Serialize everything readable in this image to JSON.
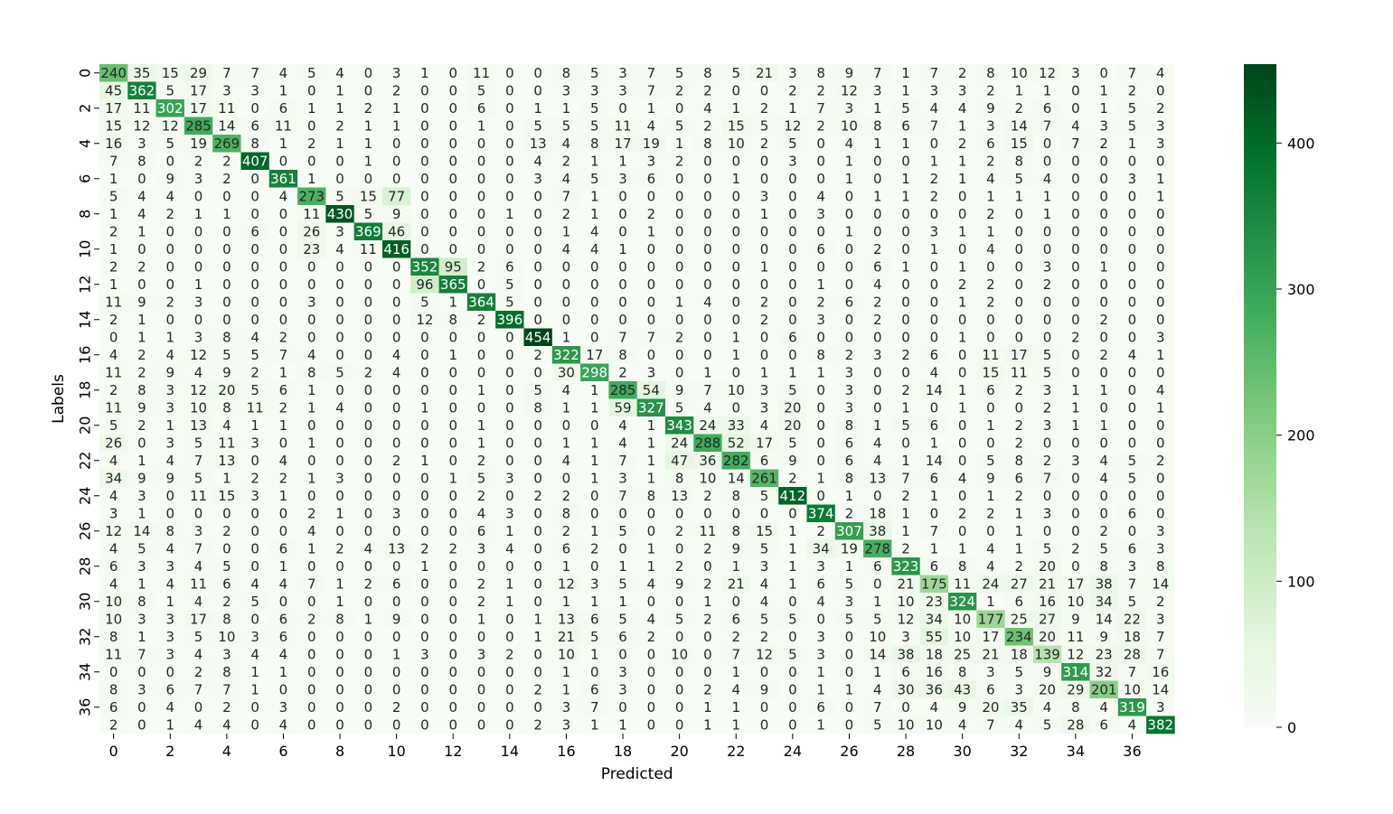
{
  "chart_data": {
    "type": "heatmap",
    "title": "",
    "xlabel": "Predicted",
    "ylabel": "Labels",
    "x_tick_labels": [
      "0",
      "2",
      "4",
      "6",
      "8",
      "10",
      "12",
      "14",
      "16",
      "18",
      "20",
      "22",
      "24",
      "26",
      "28",
      "30",
      "32",
      "34",
      "36"
    ],
    "y_tick_labels": [
      "0",
      "2",
      "4",
      "6",
      "8",
      "10",
      "12",
      "14",
      "16",
      "18",
      "20",
      "22",
      "24",
      "26",
      "28",
      "30",
      "32",
      "34",
      "36"
    ],
    "colorbar_ticks": [
      "0",
      "100",
      "200",
      "300",
      "400"
    ],
    "colorbar_range": [
      0,
      454
    ],
    "colormap": [
      "#f7fcf5",
      "#e5f5e0",
      "#c7e9c0",
      "#a1d99b",
      "#74c476",
      "#41ab5d",
      "#238b45",
      "#006d2c",
      "#00441b"
    ],
    "matrix": [
      [
        240,
        35,
        15,
        29,
        7,
        7,
        4,
        5,
        4,
        0,
        3,
        1,
        0,
        11,
        0,
        0,
        8,
        5,
        3,
        7,
        5,
        8,
        5,
        21,
        3,
        8,
        9,
        7,
        1,
        7,
        2,
        8,
        10,
        12,
        3,
        0,
        7,
        4
      ],
      [
        45,
        362,
        5,
        17,
        3,
        3,
        1,
        0,
        1,
        0,
        2,
        0,
        0,
        5,
        0,
        0,
        3,
        3,
        3,
        7,
        2,
        2,
        0,
        0,
        2,
        2,
        12,
        3,
        1,
        3,
        3,
        2,
        1,
        1,
        0,
        1,
        2,
        0
      ],
      [
        17,
        11,
        302,
        17,
        11,
        0,
        6,
        1,
        1,
        2,
        1,
        0,
        0,
        6,
        0,
        1,
        1,
        5,
        0,
        1,
        0,
        4,
        1,
        2,
        1,
        7,
        3,
        1,
        5,
        4,
        4,
        9,
        2,
        6,
        0,
        1,
        5,
        2
      ],
      [
        15,
        12,
        12,
        285,
        14,
        6,
        11,
        0,
        2,
        1,
        1,
        0,
        0,
        1,
        0,
        5,
        5,
        5,
        11,
        4,
        5,
        2,
        15,
        5,
        12,
        2,
        10,
        8,
        6,
        7,
        1,
        3,
        14,
        7,
        4,
        3,
        5,
        3
      ],
      [
        16,
        3,
        5,
        19,
        269,
        8,
        1,
        2,
        1,
        1,
        0,
        0,
        0,
        0,
        0,
        13,
        4,
        8,
        17,
        19,
        1,
        8,
        10,
        2,
        5,
        0,
        4,
        1,
        1,
        0,
        2,
        6,
        15,
        0,
        7,
        2,
        1,
        3
      ],
      [
        7,
        8,
        0,
        2,
        2,
        407,
        0,
        0,
        0,
        1,
        0,
        0,
        0,
        0,
        0,
        4,
        2,
        1,
        1,
        3,
        2,
        0,
        0,
        0,
        3,
        0,
        1,
        0,
        0,
        1,
        1,
        2,
        8,
        0,
        0,
        0,
        0,
        0
      ],
      [
        1,
        0,
        9,
        3,
        2,
        0,
        361,
        1,
        0,
        0,
        0,
        0,
        0,
        0,
        0,
        3,
        4,
        5,
        3,
        6,
        0,
        0,
        1,
        0,
        0,
        0,
        1,
        0,
        1,
        2,
        1,
        4,
        5,
        4,
        0,
        0,
        3,
        1
      ],
      [
        5,
        4,
        4,
        0,
        0,
        0,
        4,
        273,
        5,
        15,
        77,
        0,
        0,
        0,
        0,
        0,
        7,
        1,
        0,
        0,
        0,
        0,
        0,
        3,
        0,
        4,
        0,
        1,
        1,
        2,
        0,
        1,
        1,
        1,
        0,
        0,
        0,
        1
      ],
      [
        1,
        4,
        2,
        1,
        1,
        0,
        0,
        11,
        430,
        5,
        9,
        0,
        0,
        0,
        1,
        0,
        2,
        1,
        0,
        2,
        0,
        0,
        0,
        1,
        0,
        3,
        0,
        0,
        0,
        0,
        0,
        2,
        0,
        1,
        0,
        0,
        0,
        0
      ],
      [
        2,
        1,
        0,
        0,
        0,
        6,
        0,
        26,
        3,
        369,
        46,
        0,
        0,
        0,
        0,
        0,
        1,
        4,
        0,
        1,
        0,
        0,
        0,
        0,
        0,
        0,
        1,
        0,
        0,
        3,
        1,
        1,
        0,
        0,
        0,
        0,
        0,
        0
      ],
      [
        1,
        0,
        0,
        0,
        0,
        0,
        0,
        23,
        4,
        11,
        416,
        0,
        0,
        0,
        0,
        0,
        4,
        4,
        1,
        0,
        0,
        0,
        0,
        0,
        0,
        6,
        0,
        2,
        0,
        1,
        0,
        4,
        0,
        0,
        0,
        0,
        0,
        0
      ],
      [
        2,
        2,
        0,
        0,
        0,
        0,
        0,
        0,
        0,
        0,
        0,
        352,
        95,
        2,
        6,
        0,
        0,
        0,
        0,
        0,
        0,
        0,
        0,
        1,
        0,
        0,
        0,
        6,
        1,
        0,
        1,
        0,
        0,
        3,
        0,
        1,
        0,
        0
      ],
      [
        1,
        0,
        0,
        1,
        0,
        0,
        0,
        0,
        0,
        0,
        0,
        96,
        365,
        0,
        5,
        0,
        0,
        0,
        0,
        0,
        0,
        0,
        0,
        0,
        0,
        1,
        0,
        4,
        0,
        0,
        2,
        2,
        0,
        2,
        0,
        0,
        0,
        0
      ],
      [
        11,
        9,
        2,
        3,
        0,
        0,
        0,
        3,
        0,
        0,
        0,
        5,
        1,
        364,
        5,
        0,
        0,
        0,
        0,
        0,
        1,
        4,
        0,
        2,
        0,
        2,
        6,
        2,
        0,
        0,
        1,
        2,
        0,
        0,
        0,
        0,
        0,
        0
      ],
      [
        2,
        1,
        0,
        0,
        0,
        0,
        0,
        0,
        0,
        0,
        0,
        12,
        8,
        2,
        396,
        0,
        0,
        0,
        0,
        0,
        0,
        0,
        0,
        2,
        0,
        3,
        0,
        2,
        0,
        0,
        0,
        0,
        0,
        0,
        0,
        2,
        0,
        0
      ],
      [
        0,
        1,
        1,
        3,
        8,
        4,
        2,
        0,
        0,
        0,
        0,
        0,
        0,
        0,
        0,
        454,
        1,
        0,
        7,
        7,
        2,
        0,
        1,
        0,
        6,
        0,
        0,
        0,
        0,
        0,
        1,
        0,
        0,
        0,
        2,
        0,
        0,
        3
      ],
      [
        4,
        2,
        4,
        12,
        5,
        5,
        7,
        4,
        0,
        0,
        4,
        0,
        1,
        0,
        0,
        2,
        322,
        17,
        8,
        0,
        0,
        0,
        1,
        0,
        0,
        8,
        2,
        3,
        2,
        6,
        0,
        11,
        17,
        5,
        0,
        2,
        4,
        1
      ],
      [
        11,
        2,
        9,
        4,
        9,
        2,
        1,
        8,
        5,
        2,
        4,
        0,
        0,
        0,
        0,
        0,
        30,
        298,
        2,
        3,
        0,
        1,
        0,
        1,
        1,
        1,
        3,
        0,
        0,
        4,
        0,
        15,
        11,
        5,
        0,
        0,
        0,
        0
      ],
      [
        2,
        8,
        3,
        12,
        20,
        5,
        6,
        1,
        0,
        0,
        0,
        0,
        0,
        1,
        0,
        5,
        4,
        1,
        285,
        54,
        9,
        7,
        10,
        3,
        5,
        0,
        3,
        0,
        2,
        14,
        1,
        6,
        2,
        3,
        1,
        1,
        0,
        4
      ],
      [
        11,
        9,
        3,
        10,
        8,
        11,
        2,
        1,
        4,
        0,
        0,
        1,
        0,
        0,
        0,
        8,
        1,
        1,
        59,
        327,
        5,
        4,
        0,
        3,
        20,
        0,
        3,
        0,
        1,
        0,
        1,
        0,
        0,
        2,
        1,
        0,
        0,
        1
      ],
      [
        5,
        2,
        1,
        13,
        4,
        1,
        1,
        0,
        0,
        0,
        0,
        0,
        0,
        1,
        0,
        0,
        0,
        0,
        4,
        1,
        343,
        24,
        33,
        4,
        20,
        0,
        8,
        1,
        5,
        6,
        0,
        1,
        2,
        3,
        1,
        1,
        0,
        0
      ],
      [
        26,
        0,
        3,
        5,
        11,
        3,
        0,
        1,
        0,
        0,
        0,
        0,
        0,
        1,
        0,
        0,
        1,
        1,
        4,
        1,
        24,
        288,
        52,
        17,
        5,
        0,
        6,
        4,
        0,
        1,
        0,
        0,
        2,
        0,
        0,
        0,
        0,
        0
      ],
      [
        4,
        1,
        4,
        7,
        13,
        0,
        4,
        0,
        0,
        0,
        2,
        1,
        0,
        2,
        0,
        0,
        4,
        1,
        7,
        1,
        47,
        36,
        282,
        6,
        9,
        0,
        6,
        4,
        1,
        14,
        0,
        5,
        8,
        2,
        3,
        4,
        5,
        2
      ],
      [
        34,
        9,
        9,
        5,
        1,
        2,
        2,
        1,
        3,
        0,
        0,
        0,
        1,
        5,
        3,
        0,
        0,
        1,
        3,
        1,
        8,
        10,
        14,
        261,
        2,
        1,
        8,
        13,
        7,
        6,
        4,
        9,
        6,
        7,
        0,
        4,
        5,
        0
      ],
      [
        4,
        3,
        0,
        11,
        15,
        3,
        1,
        0,
        0,
        0,
        0,
        0,
        0,
        2,
        0,
        2,
        2,
        0,
        7,
        8,
        13,
        2,
        8,
        5,
        412,
        0,
        1,
        0,
        2,
        1,
        0,
        1,
        2,
        0,
        0,
        0,
        0,
        0
      ],
      [
        3,
        1,
        0,
        0,
        0,
        0,
        0,
        2,
        1,
        0,
        3,
        0,
        0,
        4,
        3,
        0,
        8,
        0,
        0,
        0,
        0,
        0,
        0,
        0,
        0,
        374,
        2,
        18,
        1,
        0,
        2,
        2,
        1,
        3,
        0,
        0,
        6,
        0
      ],
      [
        12,
        14,
        8,
        3,
        2,
        0,
        0,
        4,
        0,
        0,
        0,
        0,
        0,
        6,
        1,
        0,
        2,
        1,
        5,
        0,
        2,
        11,
        8,
        15,
        1,
        2,
        307,
        38,
        1,
        7,
        0,
        0,
        1,
        0,
        0,
        2,
        0,
        3
      ],
      [
        4,
        5,
        4,
        7,
        0,
        0,
        6,
        1,
        2,
        4,
        13,
        2,
        2,
        3,
        4,
        0,
        6,
        2,
        0,
        1,
        0,
        2,
        9,
        5,
        1,
        34,
        19,
        278,
        2,
        1,
        1,
        4,
        1,
        5,
        2,
        5,
        6,
        3
      ],
      [
        6,
        3,
        3,
        4,
        5,
        0,
        1,
        0,
        0,
        0,
        0,
        1,
        0,
        0,
        0,
        0,
        1,
        0,
        1,
        1,
        2,
        0,
        1,
        3,
        1,
        3,
        1,
        6,
        323,
        6,
        8,
        4,
        2,
        20,
        0,
        8,
        3,
        8
      ],
      [
        4,
        1,
        4,
        11,
        6,
        4,
        4,
        7,
        1,
        2,
        6,
        0,
        0,
        2,
        1,
        0,
        12,
        3,
        5,
        4,
        9,
        2,
        21,
        4,
        1,
        6,
        5,
        0,
        21,
        175,
        11,
        24,
        27,
        21,
        17,
        38,
        7,
        14
      ],
      [
        10,
        8,
        1,
        4,
        2,
        5,
        0,
        0,
        1,
        0,
        0,
        0,
        0,
        2,
        1,
        0,
        1,
        1,
        1,
        0,
        0,
        1,
        0,
        4,
        0,
        4,
        3,
        1,
        10,
        23,
        324,
        1,
        6,
        16,
        10,
        34,
        5,
        2
      ],
      [
        10,
        3,
        3,
        17,
        8,
        0,
        6,
        2,
        8,
        1,
        9,
        0,
        0,
        1,
        0,
        1,
        13,
        6,
        5,
        4,
        5,
        2,
        6,
        5,
        5,
        0,
        5,
        5,
        12,
        34,
        10,
        177,
        25,
        27,
        9,
        14,
        22,
        3
      ],
      [
        8,
        1,
        3,
        5,
        10,
        3,
        6,
        0,
        0,
        0,
        0,
        0,
        0,
        0,
        0,
        1,
        21,
        5,
        6,
        2,
        0,
        0,
        2,
        2,
        0,
        3,
        0,
        10,
        3,
        55,
        10,
        17,
        234,
        20,
        11,
        9,
        18,
        7
      ],
      [
        11,
        7,
        3,
        4,
        3,
        4,
        4,
        0,
        0,
        0,
        1,
        3,
        0,
        3,
        2,
        0,
        10,
        1,
        0,
        0,
        10,
        0,
        7,
        12,
        5,
        3,
        0,
        14,
        38,
        18,
        25,
        21,
        18,
        139,
        12,
        23,
        28,
        7
      ],
      [
        0,
        0,
        0,
        2,
        8,
        1,
        1,
        0,
        0,
        0,
        0,
        0,
        0,
        0,
        0,
        0,
        1,
        0,
        3,
        0,
        0,
        0,
        1,
        0,
        0,
        1,
        0,
        1,
        6,
        16,
        8,
        3,
        5,
        9,
        314,
        32,
        7,
        16
      ],
      [
        8,
        3,
        6,
        7,
        7,
        1,
        0,
        0,
        0,
        0,
        0,
        0,
        0,
        0,
        0,
        2,
        1,
        6,
        3,
        0,
        0,
        2,
        4,
        9,
        0,
        1,
        1,
        4,
        30,
        36,
        43,
        6,
        3,
        20,
        29,
        201,
        10,
        14
      ],
      [
        6,
        0,
        4,
        0,
        2,
        0,
        3,
        0,
        0,
        0,
        2,
        0,
        0,
        0,
        0,
        0,
        3,
        7,
        0,
        0,
        0,
        1,
        1,
        0,
        0,
        6,
        0,
        7,
        0,
        4,
        9,
        20,
        35,
        4,
        8,
        4,
        319,
        3
      ],
      [
        2,
        0,
        1,
        4,
        4,
        0,
        4,
        0,
        0,
        0,
        0,
        0,
        0,
        0,
        0,
        2,
        3,
        1,
        1,
        0,
        0,
        1,
        1,
        0,
        0,
        1,
        0,
        5,
        10,
        10,
        4,
        7,
        4,
        5,
        28,
        6,
        4,
        382
      ]
    ]
  }
}
